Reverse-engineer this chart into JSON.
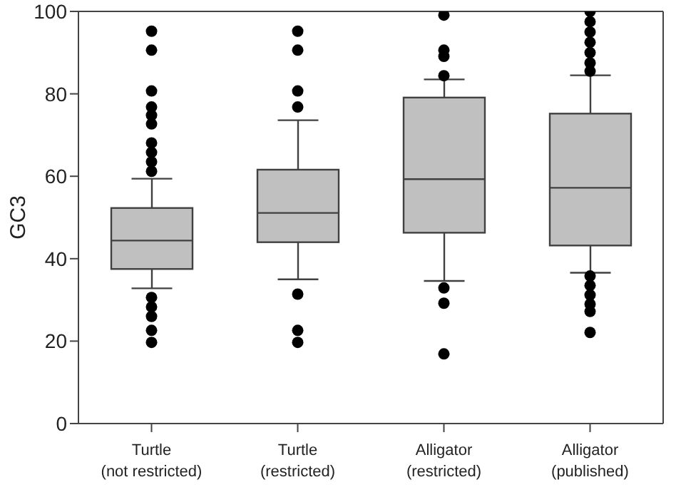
{
  "chart_data": {
    "type": "box",
    "ylabel": "GC3",
    "categories": [
      "Turtle (not restricted)",
      "Turtle (restricted)",
      "Alligator (restricted)",
      "Alligator (published)"
    ],
    "color": "#c0c0c0",
    "marker": "circle",
    "ylim": [
      0,
      100
    ],
    "yticks": [
      0,
      20,
      40,
      60,
      80,
      100
    ],
    "boxes": [
      {
        "low": 32.8,
        "q1": 37.5,
        "median": 44.4,
        "q3": 52.3,
        "high": 59.4,
        "outliers": [
          95.2,
          90.6,
          80.7,
          76.8,
          74.8,
          72.7,
          68.1,
          65.8,
          63.5,
          61.2,
          30.6,
          28.3,
          26.0,
          22.6,
          19.7
        ]
      },
      {
        "low": 35.0,
        "q1": 44.0,
        "median": 51.1,
        "q3": 61.6,
        "high": 73.6,
        "outliers": [
          95.2,
          90.6,
          80.7,
          76.8,
          31.4,
          22.6,
          19.7
        ]
      },
      {
        "low": 34.6,
        "q1": 46.3,
        "median": 59.3,
        "q3": 79.1,
        "high": 83.5,
        "outliers": [
          99.1,
          90.6,
          89.1,
          84.4,
          32.9,
          29.2,
          16.9
        ]
      },
      {
        "low": 36.6,
        "q1": 43.2,
        "median": 57.2,
        "q3": 75.2,
        "high": 84.5,
        "outliers": [
          100,
          97.5,
          95,
          92.5,
          90,
          87.5,
          85.5,
          35.8,
          33.5,
          31.2,
          29.0,
          27.2,
          22.1
        ]
      }
    ]
  }
}
